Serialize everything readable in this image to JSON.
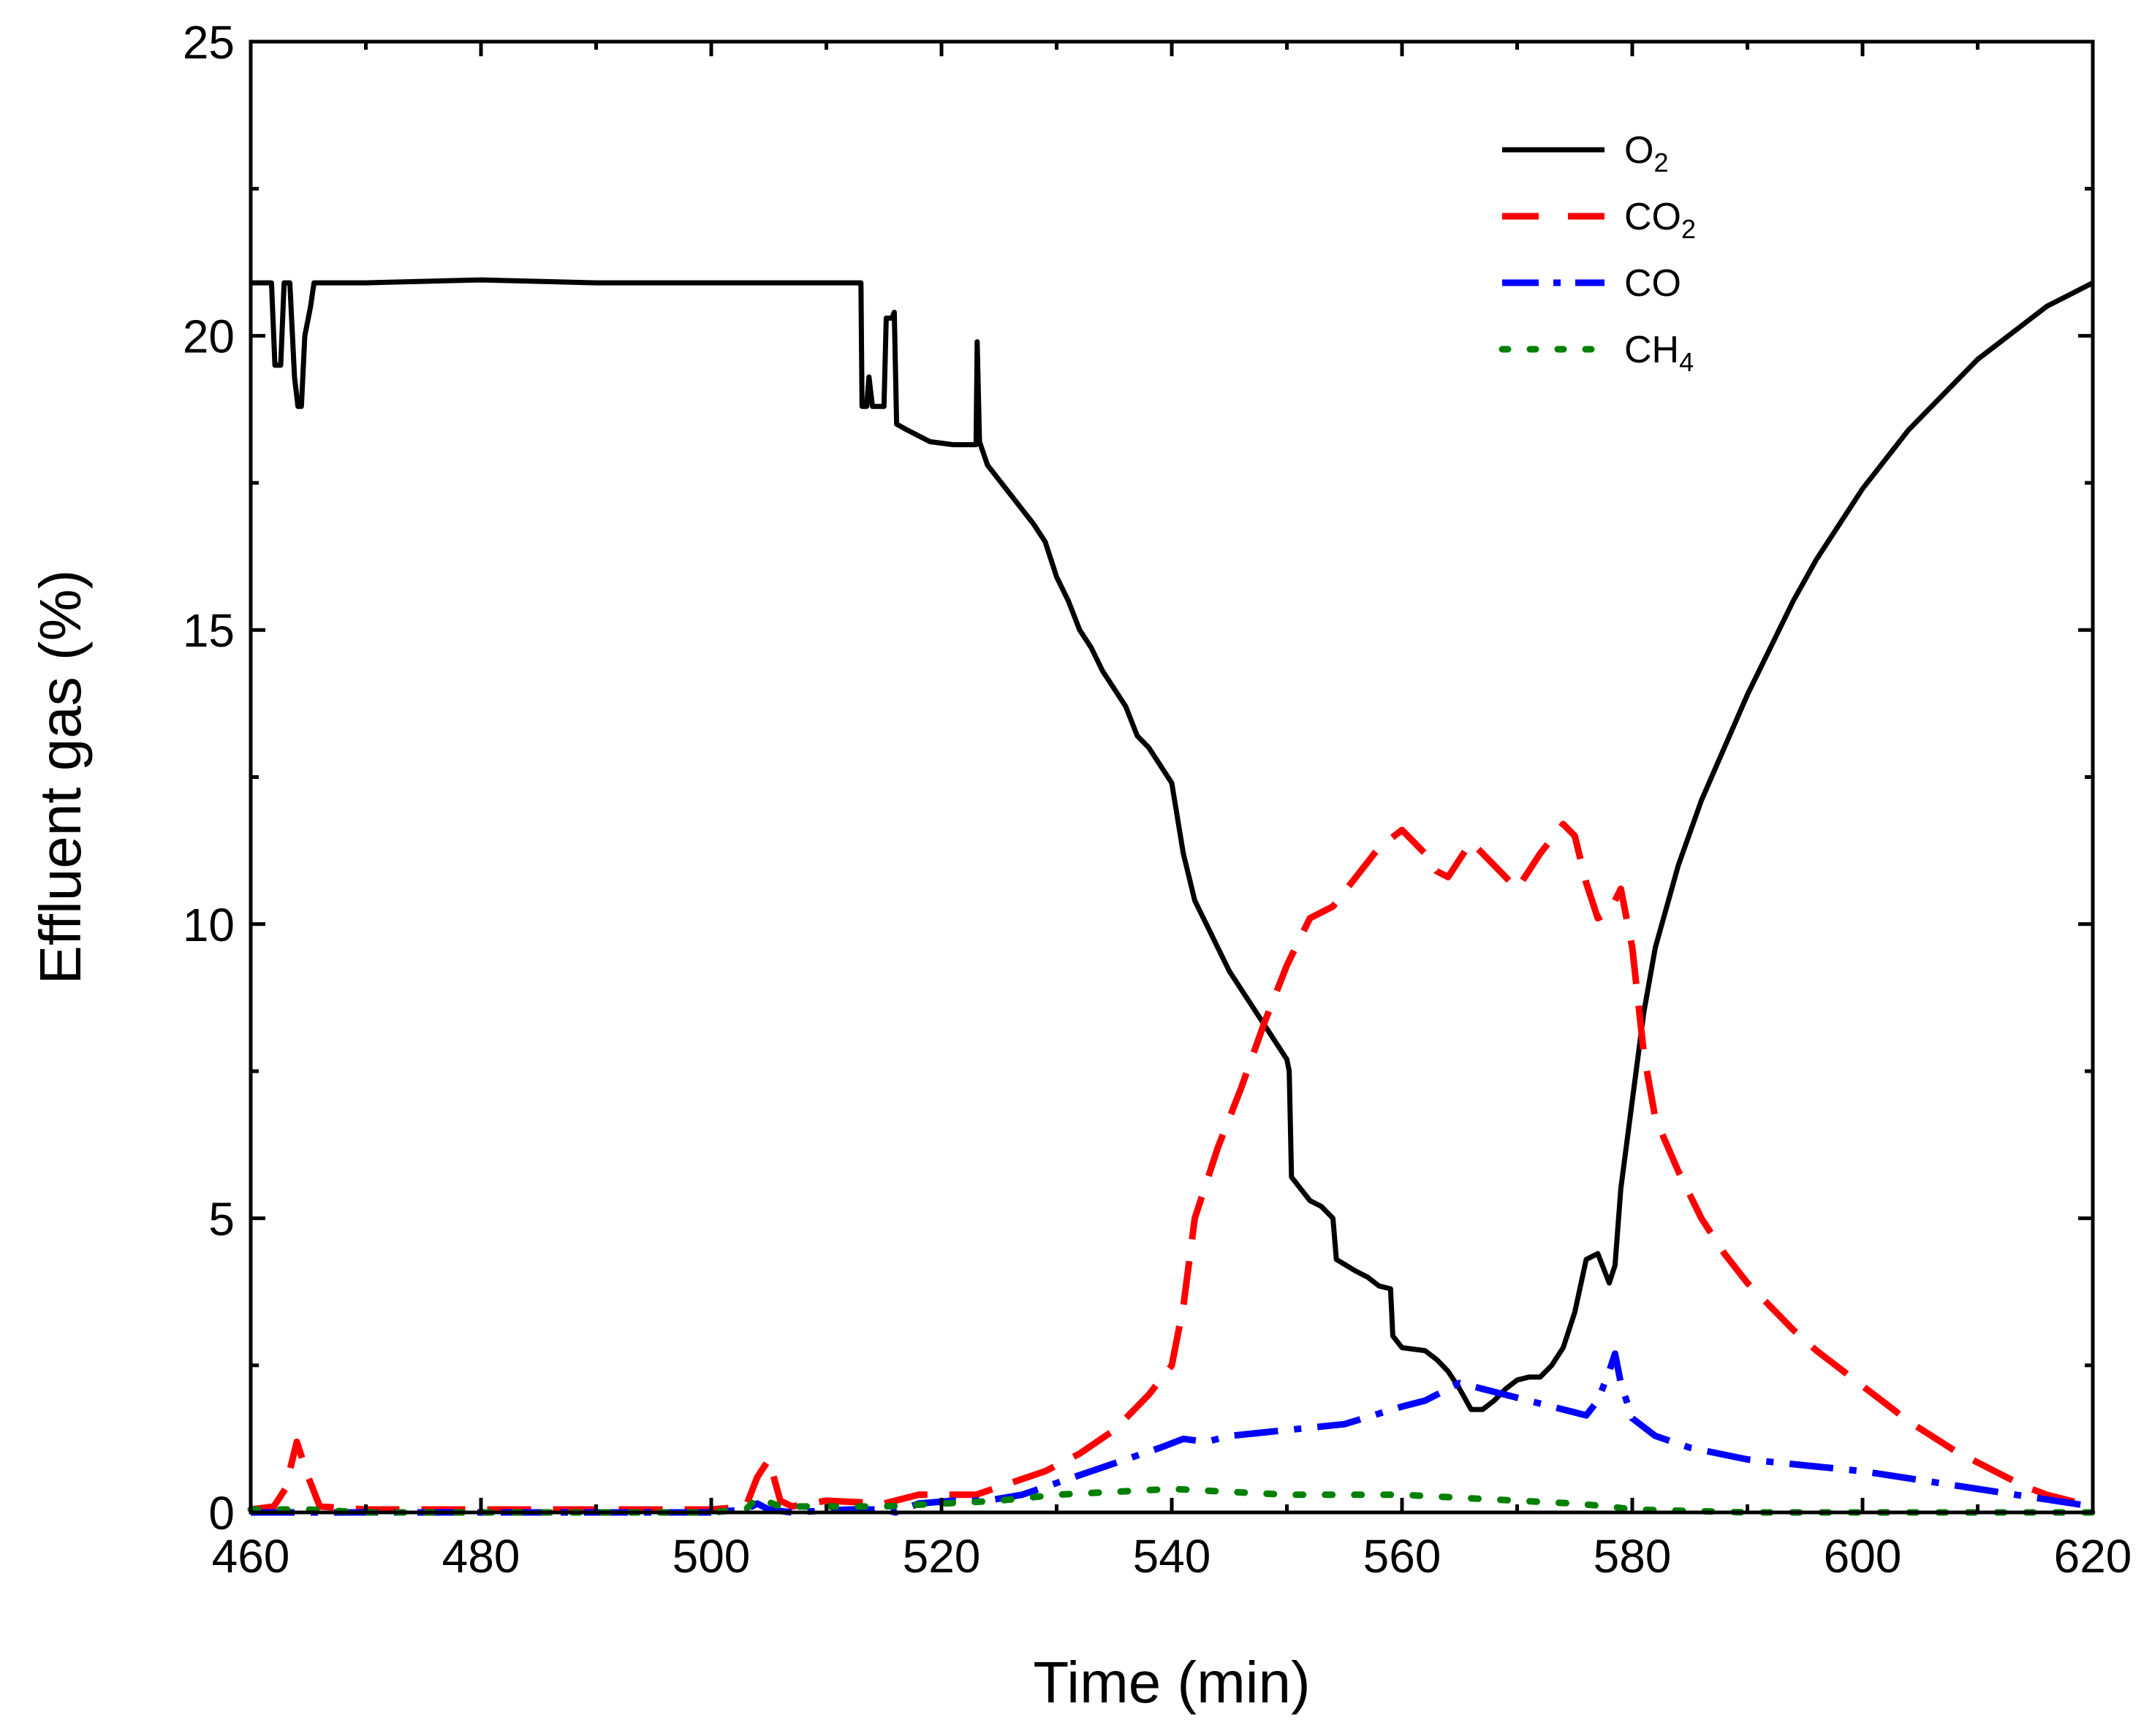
{
  "chart_data": {
    "type": "line",
    "xlabel": "Time (min)",
    "ylabel": "Effluent gas (%)",
    "xlim": [
      460,
      620
    ],
    "ylim": [
      0,
      25
    ],
    "xticks": [
      460,
      480,
      500,
      520,
      540,
      560,
      580,
      600,
      620
    ],
    "yticks": [
      0,
      5,
      10,
      15,
      20,
      25
    ],
    "grid": false,
    "legend_position": "top-right",
    "series": [
      {
        "name": "O2",
        "label_main": "O",
        "label_sub": "2",
        "color": "#000000",
        "style": "solid",
        "points": [
          [
            460,
            20.9
          ],
          [
            461.8,
            20.9
          ],
          [
            462.1,
            19.5
          ],
          [
            462.6,
            19.5
          ],
          [
            462.9,
            20.9
          ],
          [
            463.4,
            20.9
          ],
          [
            463.8,
            19.3
          ],
          [
            464.1,
            18.8
          ],
          [
            464.4,
            18.8
          ],
          [
            464.7,
            20.0
          ],
          [
            465.2,
            20.5
          ],
          [
            465.5,
            20.9
          ],
          [
            470,
            20.9
          ],
          [
            480,
            20.95
          ],
          [
            490,
            20.9
          ],
          [
            500,
            20.9
          ],
          [
            505,
            20.9
          ],
          [
            513,
            20.9
          ],
          [
            513.1,
            18.8
          ],
          [
            513.5,
            18.8
          ],
          [
            513.7,
            19.3
          ],
          [
            514.0,
            18.8
          ],
          [
            515.0,
            18.8
          ],
          [
            515.2,
            20.3
          ],
          [
            515.7,
            20.3
          ],
          [
            515.9,
            20.4
          ],
          [
            516.1,
            18.5
          ],
          [
            517,
            18.4
          ],
          [
            519,
            18.2
          ],
          [
            521,
            18.15
          ],
          [
            523,
            18.15
          ],
          [
            523.1,
            19.9
          ],
          [
            523.3,
            18.2
          ],
          [
            524,
            17.8
          ],
          [
            526,
            17.3
          ],
          [
            528,
            16.8
          ],
          [
            529,
            16.5
          ],
          [
            530,
            15.9
          ],
          [
            531,
            15.5
          ],
          [
            532,
            15.0
          ],
          [
            533,
            14.7
          ],
          [
            534,
            14.3
          ],
          [
            535,
            14.0
          ],
          [
            536,
            13.7
          ],
          [
            537,
            13.2
          ],
          [
            538,
            13.0
          ],
          [
            539,
            12.7
          ],
          [
            540,
            12.4
          ],
          [
            541,
            11.2
          ],
          [
            542,
            10.4
          ],
          [
            543,
            10.0
          ],
          [
            544,
            9.6
          ],
          [
            545,
            9.2
          ],
          [
            546,
            8.9
          ],
          [
            547,
            8.6
          ],
          [
            548,
            8.3
          ],
          [
            549,
            8.0
          ],
          [
            550,
            7.7
          ],
          [
            550.2,
            7.5
          ],
          [
            550.4,
            5.7
          ],
          [
            552,
            5.3
          ],
          [
            553,
            5.2
          ],
          [
            554,
            5.0
          ],
          [
            554.3,
            4.3
          ],
          [
            556,
            4.1
          ],
          [
            557,
            4.0
          ],
          [
            558,
            3.85
          ],
          [
            559,
            3.8
          ],
          [
            559.2,
            3.0
          ],
          [
            560,
            2.8
          ],
          [
            562,
            2.75
          ],
          [
            563,
            2.6
          ],
          [
            564,
            2.4
          ],
          [
            565,
            2.1
          ],
          [
            566,
            1.75
          ],
          [
            567,
            1.75
          ],
          [
            568,
            1.9
          ],
          [
            569,
            2.1
          ],
          [
            570,
            2.25
          ],
          [
            571,
            2.3
          ],
          [
            572,
            2.3
          ],
          [
            573,
            2.5
          ],
          [
            574,
            2.8
          ],
          [
            575,
            3.4
          ],
          [
            576,
            4.3
          ],
          [
            577,
            4.4
          ],
          [
            578,
            3.9
          ],
          [
            578.5,
            4.2
          ],
          [
            579,
            5.5
          ],
          [
            580,
            7.0
          ],
          [
            581,
            8.5
          ],
          [
            582,
            9.6
          ],
          [
            584,
            11.0
          ],
          [
            586,
            12.1
          ],
          [
            588,
            13.0
          ],
          [
            590,
            13.9
          ],
          [
            592,
            14.7
          ],
          [
            594,
            15.5
          ],
          [
            596,
            16.2
          ],
          [
            598,
            16.8
          ],
          [
            600,
            17.4
          ],
          [
            602,
            17.9
          ],
          [
            604,
            18.4
          ],
          [
            606,
            18.8
          ],
          [
            608,
            19.2
          ],
          [
            610,
            19.6
          ],
          [
            612,
            19.9
          ],
          [
            614,
            20.2
          ],
          [
            616,
            20.5
          ],
          [
            618,
            20.7
          ],
          [
            620,
            20.9
          ]
        ]
      },
      {
        "name": "CO2",
        "label_main": "CO",
        "label_sub": "2",
        "color": "#ff0000",
        "style": "dash",
        "points": [
          [
            460,
            0.05
          ],
          [
            462,
            0.1
          ],
          [
            463,
            0.4
          ],
          [
            464,
            1.2
          ],
          [
            465,
            0.6
          ],
          [
            466,
            0.1
          ],
          [
            470,
            0.05
          ],
          [
            480,
            0.05
          ],
          [
            490,
            0.05
          ],
          [
            500,
            0.05
          ],
          [
            503,
            0.1
          ],
          [
            504,
            0.6
          ],
          [
            505,
            0.9
          ],
          [
            506,
            0.2
          ],
          [
            507,
            0.1
          ],
          [
            510,
            0.2
          ],
          [
            515,
            0.15
          ],
          [
            518,
            0.3
          ],
          [
            521,
            0.3
          ],
          [
            523,
            0.3
          ],
          [
            526,
            0.5
          ],
          [
            529,
            0.7
          ],
          [
            532,
            1.0
          ],
          [
            535,
            1.4
          ],
          [
            538,
            2.0
          ],
          [
            540,
            2.5
          ],
          [
            541,
            3.5
          ],
          [
            542,
            5.0
          ],
          [
            544,
            6.2
          ],
          [
            546,
            7.2
          ],
          [
            548,
            8.3
          ],
          [
            550,
            9.3
          ],
          [
            552,
            10.1
          ],
          [
            554,
            10.3
          ],
          [
            556,
            10.8
          ],
          [
            558,
            11.3
          ],
          [
            560,
            11.6
          ],
          [
            562,
            11.2
          ],
          [
            563,
            10.9
          ],
          [
            564,
            10.8
          ],
          [
            566,
            11.4
          ],
          [
            568,
            11.0
          ],
          [
            570,
            10.6
          ],
          [
            572,
            11.2
          ],
          [
            574,
            11.7
          ],
          [
            575,
            11.5
          ],
          [
            576,
            10.7
          ],
          [
            577,
            10.1
          ],
          [
            578,
            10.2
          ],
          [
            579,
            10.6
          ],
          [
            580,
            9.6
          ],
          [
            581,
            7.8
          ],
          [
            582,
            6.7
          ],
          [
            584,
            5.8
          ],
          [
            586,
            5.0
          ],
          [
            588,
            4.4
          ],
          [
            590,
            3.9
          ],
          [
            592,
            3.5
          ],
          [
            594,
            3.1
          ],
          [
            596,
            2.75
          ],
          [
            598,
            2.45
          ],
          [
            600,
            2.15
          ],
          [
            602,
            1.85
          ],
          [
            604,
            1.55
          ],
          [
            606,
            1.3
          ],
          [
            608,
            1.05
          ],
          [
            610,
            0.85
          ],
          [
            612,
            0.65
          ],
          [
            614,
            0.45
          ],
          [
            616,
            0.3
          ],
          [
            618,
            0.2
          ],
          [
            620,
            0.1
          ]
        ]
      },
      {
        "name": "CO",
        "label_main": "CO",
        "label_sub": "",
        "color": "#0000ff",
        "style": "dashdot",
        "points": [
          [
            460,
            0.0
          ],
          [
            470,
            0.0
          ],
          [
            480,
            0.0
          ],
          [
            490,
            0.0
          ],
          [
            500,
            0.0
          ],
          [
            503,
            0.05
          ],
          [
            504,
            0.15
          ],
          [
            505,
            0.05
          ],
          [
            507,
            0.0
          ],
          [
            512,
            0.05
          ],
          [
            515,
            0.05
          ],
          [
            516,
            0.0
          ],
          [
            518,
            0.15
          ],
          [
            521,
            0.2
          ],
          [
            524,
            0.2
          ],
          [
            527,
            0.3
          ],
          [
            530,
            0.5
          ],
          [
            533,
            0.7
          ],
          [
            536,
            0.9
          ],
          [
            539,
            1.1
          ],
          [
            541,
            1.25
          ],
          [
            543,
            1.2
          ],
          [
            545,
            1.3
          ],
          [
            550,
            1.4
          ],
          [
            555,
            1.5
          ],
          [
            560,
            1.8
          ],
          [
            562,
            1.9
          ],
          [
            565,
            2.2
          ],
          [
            570,
            1.95
          ],
          [
            575,
            1.7
          ],
          [
            576,
            1.65
          ],
          [
            577,
            1.9
          ],
          [
            578,
            2.4
          ],
          [
            578.5,
            2.7
          ],
          [
            579,
            2.2
          ],
          [
            580,
            1.6
          ],
          [
            582,
            1.3
          ],
          [
            585,
            1.1
          ],
          [
            590,
            0.9
          ],
          [
            595,
            0.8
          ],
          [
            600,
            0.7
          ],
          [
            605,
            0.55
          ],
          [
            610,
            0.4
          ],
          [
            615,
            0.25
          ],
          [
            620,
            0.1
          ]
        ]
      },
      {
        "name": "CH4",
        "label_main": "CH",
        "label_sub": "4",
        "color": "#008000",
        "style": "dot",
        "points": [
          [
            460,
            0.05
          ],
          [
            465,
            0.05
          ],
          [
            470,
            0.0
          ],
          [
            480,
            0.0
          ],
          [
            490,
            0.0
          ],
          [
            500,
            0.0
          ],
          [
            503,
            0.05
          ],
          [
            504,
            0.25
          ],
          [
            506,
            0.1
          ],
          [
            510,
            0.1
          ],
          [
            515,
            0.1
          ],
          [
            520,
            0.15
          ],
          [
            525,
            0.2
          ],
          [
            530,
            0.3
          ],
          [
            535,
            0.35
          ],
          [
            540,
            0.4
          ],
          [
            545,
            0.35
          ],
          [
            550,
            0.3
          ],
          [
            555,
            0.3
          ],
          [
            560,
            0.3
          ],
          [
            565,
            0.25
          ],
          [
            570,
            0.2
          ],
          [
            575,
            0.15
          ],
          [
            578,
            0.1
          ],
          [
            580,
            0.05
          ],
          [
            590,
            0.0
          ],
          [
            600,
            0.0
          ],
          [
            610,
            0.0
          ],
          [
            620,
            0.0
          ]
        ]
      }
    ]
  }
}
